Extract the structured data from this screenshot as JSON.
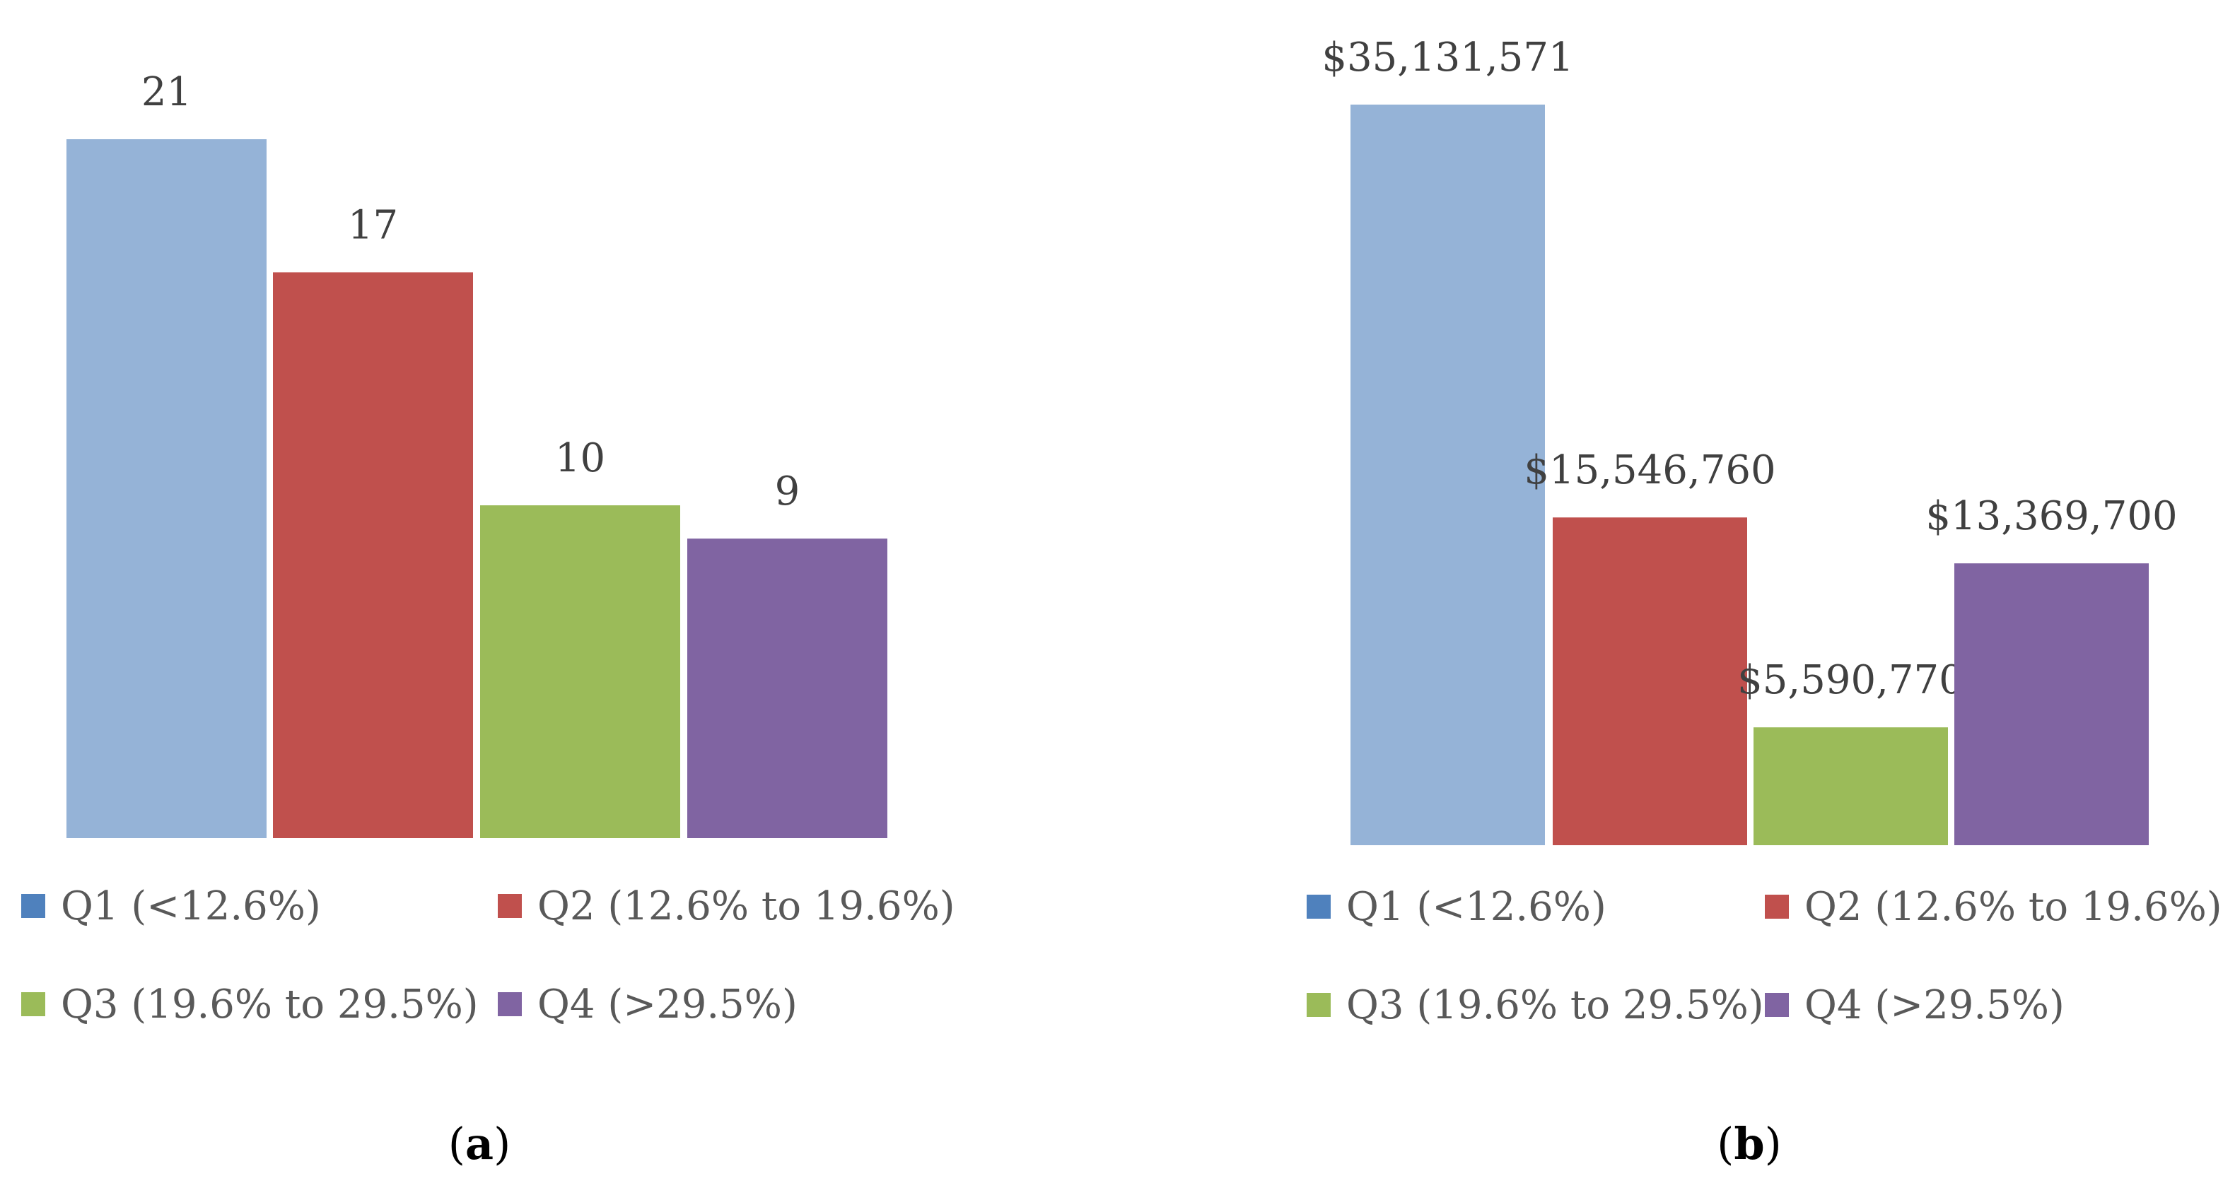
{
  "chart_data": [
    {
      "type": "bar",
      "panel_label": "a",
      "categories": [
        "Q1 (<12.6%)",
        "Q2 (12.6% to 19.6%)",
        "Q3 (19.6% to 29.5%)",
        "Q4 (>29.5%)"
      ],
      "values": [
        21,
        17,
        10,
        9
      ],
      "data_labels": [
        "21",
        "17",
        "10",
        "9"
      ],
      "colors": [
        "#95b3d7",
        "#c0504d",
        "#9bbb59",
        "#8064a2"
      ],
      "legend_marker_colors": [
        "#4f81bd",
        "#c0504d",
        "#9bbb59",
        "#8064a2"
      ],
      "legend_position": "bottom",
      "ylim": [
        0,
        21
      ],
      "grid": false
    },
    {
      "type": "bar",
      "panel_label": "b",
      "categories": [
        "Q1 (<12.6%)",
        "Q2 (12.6% to 19.6%)",
        "Q3 (19.6% to 29.5%)",
        "Q4 (>29.5%)"
      ],
      "values": [
        35131571,
        15546760,
        5590770,
        13369700
      ],
      "data_labels": [
        "$35,131,571",
        "$15,546,760",
        "$5,590,770",
        "$13,369,700"
      ],
      "colors": [
        "#95b3d7",
        "#c0504d",
        "#9bbb59",
        "#8064a2"
      ],
      "legend_marker_colors": [
        "#4f81bd",
        "#c0504d",
        "#9bbb59",
        "#8064a2"
      ],
      "legend_position": "bottom",
      "ylim": [
        0,
        35131571
      ],
      "grid": false
    }
  ]
}
